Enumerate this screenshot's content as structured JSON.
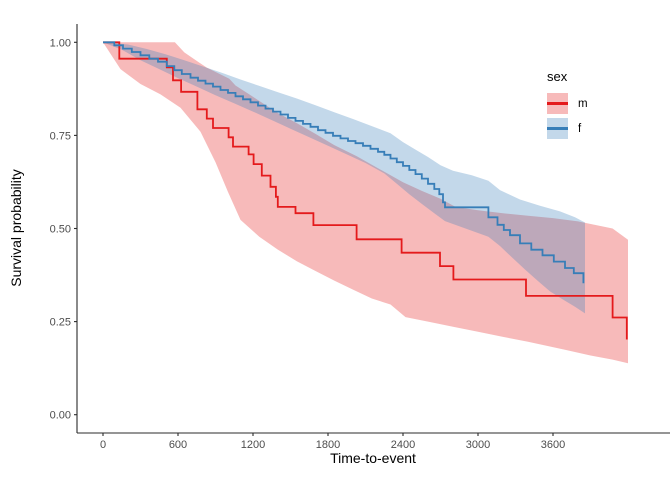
{
  "figure": {
    "xlabel": "Time-to-event",
    "ylabel": "Survival probability",
    "x_ticks": [
      0,
      600,
      1200,
      1800,
      2400,
      3000,
      3600
    ],
    "y_ticks": [
      "0.00",
      "0.25",
      "0.50",
      "0.75",
      "1.00"
    ],
    "axis_line_color": "#2b2b2b",
    "tick_text_color": "#4d4d4d",
    "legend": {
      "title": "sex",
      "items": [
        {
          "label": "m",
          "color": "#E41A1C",
          "fill": "rgba(228,26,28,0.3)"
        },
        {
          "label": "f",
          "color": "#377EB8",
          "fill": "rgba(55,126,184,0.3)"
        }
      ]
    }
  },
  "chart_data": {
    "type": "line",
    "subtype": "kaplan-meier-step",
    "title": "",
    "xlabel": "Time-to-event",
    "ylabel": "Survival probability",
    "xlim": [
      0,
      4520
    ],
    "ylim": [
      0,
      1.0
    ],
    "grid": false,
    "legend_position": "right-inside-top",
    "series": [
      {
        "name": "m",
        "color": "#E41A1C",
        "fill": "rgba(228,26,28,0.3)",
        "steps": [
          [
            0,
            1.0
          ],
          [
            130,
            0.956
          ],
          [
            510,
            0.933
          ],
          [
            560,
            0.898
          ],
          [
            625,
            0.867
          ],
          [
            755,
            0.82
          ],
          [
            830,
            0.795
          ],
          [
            880,
            0.77
          ],
          [
            1005,
            0.745
          ],
          [
            1040,
            0.72
          ],
          [
            1165,
            0.699
          ],
          [
            1205,
            0.673
          ],
          [
            1270,
            0.642
          ],
          [
            1340,
            0.612
          ],
          [
            1383,
            0.585
          ],
          [
            1398,
            0.558
          ],
          [
            1540,
            0.541
          ],
          [
            1683,
            0.509
          ],
          [
            2029,
            0.471
          ],
          [
            2389,
            0.435
          ],
          [
            2696,
            0.399
          ],
          [
            2803,
            0.363
          ],
          [
            3384,
            0.319
          ],
          [
            4077,
            0.261
          ],
          [
            4190,
            0.202
          ]
        ],
        "ci_upper": [
          [
            0,
            1.0
          ],
          [
            575,
            1.0
          ],
          [
            650,
            0.973
          ],
          [
            760,
            0.948
          ],
          [
            830,
            0.932
          ],
          [
            1010,
            0.902
          ],
          [
            1060,
            0.884
          ],
          [
            1170,
            0.86
          ],
          [
            1280,
            0.836
          ],
          [
            1400,
            0.81
          ],
          [
            1550,
            0.783
          ],
          [
            1700,
            0.754
          ],
          [
            1850,
            0.724
          ],
          [
            2030,
            0.694
          ],
          [
            2200,
            0.662
          ],
          [
            2400,
            0.624
          ],
          [
            2550,
            0.601
          ],
          [
            2700,
            0.58
          ],
          [
            2820,
            0.558
          ],
          [
            3000,
            0.549
          ],
          [
            3200,
            0.541
          ],
          [
            3400,
            0.534
          ],
          [
            3600,
            0.528
          ],
          [
            3800,
            0.519
          ],
          [
            4077,
            0.5
          ],
          [
            4200,
            0.47
          ]
        ],
        "ci_lower": [
          [
            0,
            1.0
          ],
          [
            140,
            0.928
          ],
          [
            300,
            0.888
          ],
          [
            460,
            0.86
          ],
          [
            620,
            0.824
          ],
          [
            780,
            0.76
          ],
          [
            900,
            0.678
          ],
          [
            1000,
            0.598
          ],
          [
            1100,
            0.523
          ],
          [
            1250,
            0.478
          ],
          [
            1400,
            0.443
          ],
          [
            1550,
            0.412
          ],
          [
            1700,
            0.386
          ],
          [
            1850,
            0.36
          ],
          [
            2000,
            0.336
          ],
          [
            2150,
            0.312
          ],
          [
            2300,
            0.296
          ],
          [
            2420,
            0.262
          ],
          [
            2600,
            0.25
          ],
          [
            2800,
            0.236
          ],
          [
            3000,
            0.223
          ],
          [
            3200,
            0.209
          ],
          [
            3400,
            0.196
          ],
          [
            3700,
            0.174
          ],
          [
            3900,
            0.159
          ],
          [
            4077,
            0.148
          ],
          [
            4200,
            0.138
          ]
        ]
      },
      {
        "name": "f",
        "color": "#377EB8",
        "fill": "rgba(55,126,184,0.3)",
        "steps": [
          [
            0,
            1.0
          ],
          [
            90,
            0.992
          ],
          [
            160,
            0.983
          ],
          [
            230,
            0.974
          ],
          [
            300,
            0.965
          ],
          [
            370,
            0.956
          ],
          [
            440,
            0.948
          ],
          [
            510,
            0.936
          ],
          [
            570,
            0.925
          ],
          [
            630,
            0.915
          ],
          [
            700,
            0.905
          ],
          [
            760,
            0.897
          ],
          [
            820,
            0.889
          ],
          [
            880,
            0.881
          ],
          [
            940,
            0.872
          ],
          [
            1000,
            0.864
          ],
          [
            1060,
            0.855
          ],
          [
            1120,
            0.847
          ],
          [
            1180,
            0.839
          ],
          [
            1240,
            0.83
          ],
          [
            1300,
            0.822
          ],
          [
            1360,
            0.814
          ],
          [
            1420,
            0.806
          ],
          [
            1480,
            0.797
          ],
          [
            1540,
            0.789
          ],
          [
            1600,
            0.781
          ],
          [
            1660,
            0.773
          ],
          [
            1720,
            0.764
          ],
          [
            1780,
            0.757
          ],
          [
            1840,
            0.749
          ],
          [
            1900,
            0.742
          ],
          [
            1960,
            0.735
          ],
          [
            2020,
            0.729
          ],
          [
            2080,
            0.722
          ],
          [
            2140,
            0.714
          ],
          [
            2200,
            0.706
          ],
          [
            2250,
            0.698
          ],
          [
            2300,
            0.688
          ],
          [
            2350,
            0.678
          ],
          [
            2400,
            0.668
          ],
          [
            2450,
            0.657
          ],
          [
            2500,
            0.646
          ],
          [
            2550,
            0.634
          ],
          [
            2600,
            0.62
          ],
          [
            2650,
            0.606
          ],
          [
            2690,
            0.592
          ],
          [
            2720,
            0.57
          ],
          [
            2736,
            0.557
          ],
          [
            3083,
            0.53
          ],
          [
            3156,
            0.51
          ],
          [
            3206,
            0.496
          ],
          [
            3256,
            0.482
          ],
          [
            3336,
            0.46
          ],
          [
            3426,
            0.443
          ],
          [
            3516,
            0.428
          ],
          [
            3606,
            0.411
          ],
          [
            3696,
            0.394
          ],
          [
            3766,
            0.38
          ],
          [
            3843,
            0.353
          ]
        ],
        "ci_upper": [
          [
            0,
            1.0
          ],
          [
            200,
            0.994
          ],
          [
            350,
            0.982
          ],
          [
            500,
            0.968
          ],
          [
            650,
            0.952
          ],
          [
            800,
            0.935
          ],
          [
            950,
            0.918
          ],
          [
            1100,
            0.9
          ],
          [
            1250,
            0.883
          ],
          [
            1400,
            0.866
          ],
          [
            1550,
            0.849
          ],
          [
            1700,
            0.831
          ],
          [
            1850,
            0.812
          ],
          [
            2000,
            0.794
          ],
          [
            2150,
            0.775
          ],
          [
            2300,
            0.756
          ],
          [
            2400,
            0.732
          ],
          [
            2500,
            0.712
          ],
          [
            2600,
            0.692
          ],
          [
            2700,
            0.67
          ],
          [
            2800,
            0.655
          ],
          [
            2950,
            0.643
          ],
          [
            3083,
            0.628
          ],
          [
            3176,
            0.603
          ],
          [
            3336,
            0.578
          ],
          [
            3496,
            0.561
          ],
          [
            3656,
            0.546
          ],
          [
            3776,
            0.53
          ],
          [
            3856,
            0.516
          ]
        ],
        "ci_lower": [
          [
            0,
            1.0
          ],
          [
            150,
            0.98
          ],
          [
            300,
            0.952
          ],
          [
            450,
            0.928
          ],
          [
            600,
            0.904
          ],
          [
            750,
            0.881
          ],
          [
            900,
            0.858
          ],
          [
            1050,
            0.836
          ],
          [
            1200,
            0.814
          ],
          [
            1350,
            0.791
          ],
          [
            1500,
            0.768
          ],
          [
            1650,
            0.745
          ],
          [
            1800,
            0.722
          ],
          [
            1950,
            0.699
          ],
          [
            2100,
            0.676
          ],
          [
            2250,
            0.648
          ],
          [
            2350,
            0.62
          ],
          [
            2450,
            0.592
          ],
          [
            2550,
            0.566
          ],
          [
            2650,
            0.541
          ],
          [
            2736,
            0.52
          ],
          [
            2900,
            0.5
          ],
          [
            3083,
            0.478
          ],
          [
            3176,
            0.453
          ],
          [
            3276,
            0.421
          ],
          [
            3376,
            0.39
          ],
          [
            3476,
            0.36
          ],
          [
            3576,
            0.331
          ],
          [
            3676,
            0.31
          ],
          [
            3776,
            0.29
          ],
          [
            3856,
            0.272
          ]
        ]
      }
    ]
  }
}
